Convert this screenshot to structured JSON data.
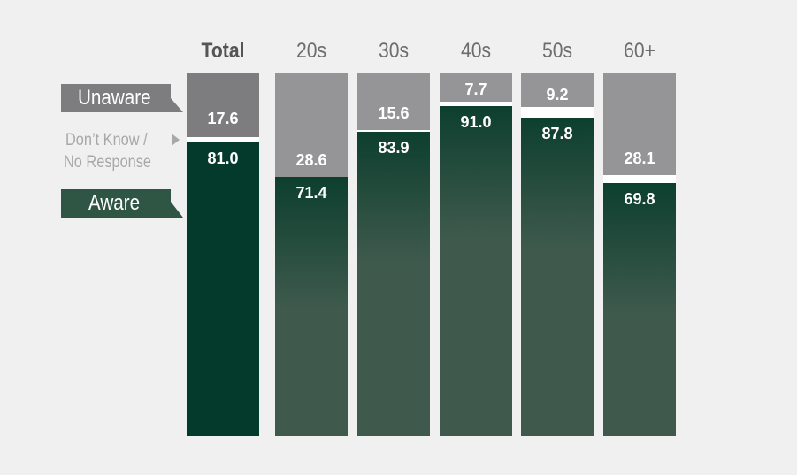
{
  "chart_data": {
    "type": "bar",
    "stacked": true,
    "categories": [
      "Total",
      "20s",
      "30s",
      "40s",
      "50s",
      "60+"
    ],
    "series": [
      {
        "name": "Aware",
        "values": [
          81.0,
          71.4,
          83.9,
          91.0,
          87.8,
          69.8
        ],
        "labels": [
          "81.0",
          "71.4",
          "83.9",
          "91.0",
          "87.8",
          "69.8"
        ]
      },
      {
        "name": "Don’t Know / No Response",
        "values": [
          1.4,
          0.0,
          0.5,
          1.3,
          3.0,
          2.1
        ]
      },
      {
        "name": "Unaware",
        "values": [
          17.6,
          28.6,
          15.6,
          7.7,
          9.2,
          28.1
        ],
        "labels": [
          "17.6",
          "28.6",
          "15.6",
          "7.7",
          "9.2",
          "28.1"
        ]
      }
    ],
    "ylim": [
      0,
      100
    ],
    "colors": {
      "aware_total": "#033a2c",
      "aware_top": "#0d3f2f",
      "aware_bottom": "#3f5a4d",
      "unaware_total": "#7d7d80",
      "unaware": "#959598",
      "dont_know": "#ffffff"
    }
  },
  "legend": {
    "unaware": "Unaware",
    "dont_know_line1": "Don’t Know /",
    "dont_know_line2": "No Response",
    "aware": "Aware"
  }
}
